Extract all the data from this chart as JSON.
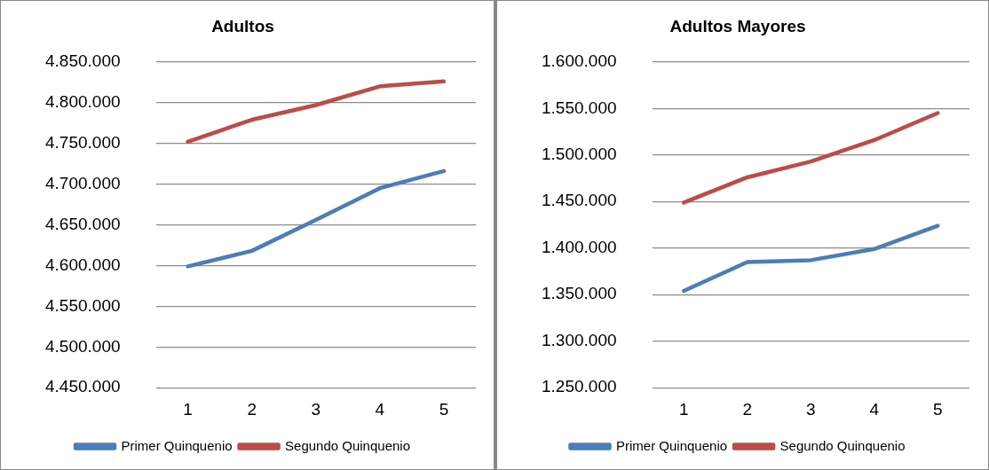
{
  "chart_data": [
    {
      "type": "line",
      "title": "Adultos",
      "categories": [
        "1",
        "2",
        "3",
        "4",
        "5"
      ],
      "series": [
        {
          "name": "Primer Quinquenio",
          "color": "#4a7ebb",
          "values": [
            4599000,
            4618000,
            4656000,
            4695000,
            4716000
          ]
        },
        {
          "name": "Segundo Quinquenio",
          "color": "#be4b48",
          "values": [
            4752000,
            4779000,
            4797000,
            4820000,
            4826000
          ]
        }
      ],
      "ylim": [
        4450000,
        4850000
      ],
      "yticks": [
        {
          "value": 4450000,
          "label": "4.450.000"
        },
        {
          "value": 4500000,
          "label": "4.500.000"
        },
        {
          "value": 4550000,
          "label": "4.550.000"
        },
        {
          "value": 4600000,
          "label": "4.600.000"
        },
        {
          "value": 4650000,
          "label": "4.650.000"
        },
        {
          "value": 4700000,
          "label": "4.700.000"
        },
        {
          "value": 4750000,
          "label": "4.750.000"
        },
        {
          "value": 4800000,
          "label": "4.800.000"
        },
        {
          "value": 4850000,
          "label": "4.850.000"
        }
      ],
      "grid": "y",
      "legend": "bottom",
      "marker": "none",
      "line_style": "solid"
    },
    {
      "type": "line",
      "title": "Adultos Mayores",
      "categories": [
        "1",
        "2",
        "3",
        "4",
        "5"
      ],
      "series": [
        {
          "name": "Primer Quinquenio",
          "color": "#4a7ebb",
          "values": [
            1354000,
            1385000,
            1387000,
            1399000,
            1424000
          ]
        },
        {
          "name": "Segundo Quinquenio",
          "color": "#be4b48",
          "values": [
            1449000,
            1476000,
            1493000,
            1516000,
            1545000
          ]
        }
      ],
      "ylim": [
        1250000,
        1600000
      ],
      "yticks": [
        {
          "value": 1250000,
          "label": "1.250.000"
        },
        {
          "value": 1300000,
          "label": "1.300.000"
        },
        {
          "value": 1350000,
          "label": "1.350.000"
        },
        {
          "value": 1400000,
          "label": "1.400.000"
        },
        {
          "value": 1450000,
          "label": "1.450.000"
        },
        {
          "value": 1500000,
          "label": "1.500.000"
        },
        {
          "value": 1550000,
          "label": "1.550.000"
        },
        {
          "value": 1600000,
          "label": "1.600.000"
        }
      ],
      "grid": "y",
      "legend": "bottom",
      "marker": "none",
      "line_style": "solid"
    }
  ]
}
